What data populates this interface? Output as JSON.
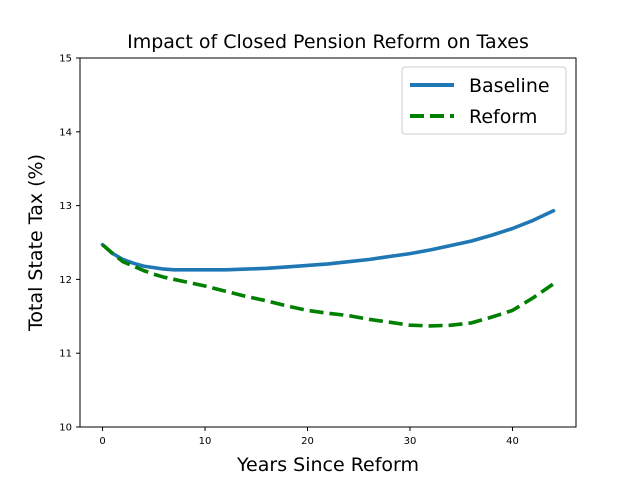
{
  "chart_data": {
    "type": "line",
    "title": "Impact of Closed Pension Reform on Taxes",
    "xlabel": "Years Since Reform",
    "ylabel": "Total State Tax (%)",
    "xlim": [
      -2.2,
      46.2
    ],
    "ylim": [
      10,
      15
    ],
    "xticks": [
      0,
      10,
      20,
      30,
      40
    ],
    "yticks": [
      10,
      11,
      12,
      13,
      14,
      15
    ],
    "xtick_labels": [
      "0",
      "10",
      "20",
      "30",
      "40"
    ],
    "ytick_labels": [
      "10",
      "11",
      "12",
      "13",
      "14",
      "15"
    ],
    "grid": false,
    "legend_position": "top-right",
    "series": [
      {
        "name": "Baseline",
        "color": "#1f77b4",
        "style": "solid",
        "x": [
          0,
          1,
          2,
          3,
          4,
          5,
          6,
          7,
          8,
          10,
          12,
          14,
          16,
          18,
          20,
          22,
          24,
          26,
          28,
          30,
          32,
          34,
          36,
          38,
          40,
          42,
          44
        ],
        "y": [
          12.47,
          12.35,
          12.27,
          12.22,
          12.18,
          12.16,
          12.14,
          12.13,
          12.13,
          12.13,
          12.13,
          12.14,
          12.15,
          12.17,
          12.19,
          12.21,
          12.24,
          12.27,
          12.31,
          12.35,
          12.4,
          12.46,
          12.52,
          12.6,
          12.69,
          12.8,
          12.93
        ]
      },
      {
        "name": "Reform",
        "color": "#008000",
        "style": "dashed",
        "x": [
          0,
          1,
          2,
          3,
          4,
          5,
          6,
          8,
          10,
          12,
          14,
          16,
          18,
          20,
          22,
          24,
          26,
          28,
          30,
          32,
          34,
          36,
          38,
          40,
          42,
          44
        ],
        "y": [
          12.47,
          12.35,
          12.24,
          12.18,
          12.12,
          12.07,
          12.03,
          11.97,
          11.91,
          11.84,
          11.77,
          11.71,
          11.64,
          11.58,
          11.54,
          11.51,
          11.46,
          11.42,
          11.38,
          11.37,
          11.38,
          11.41,
          11.49,
          11.58,
          11.75,
          11.94
        ]
      }
    ]
  }
}
